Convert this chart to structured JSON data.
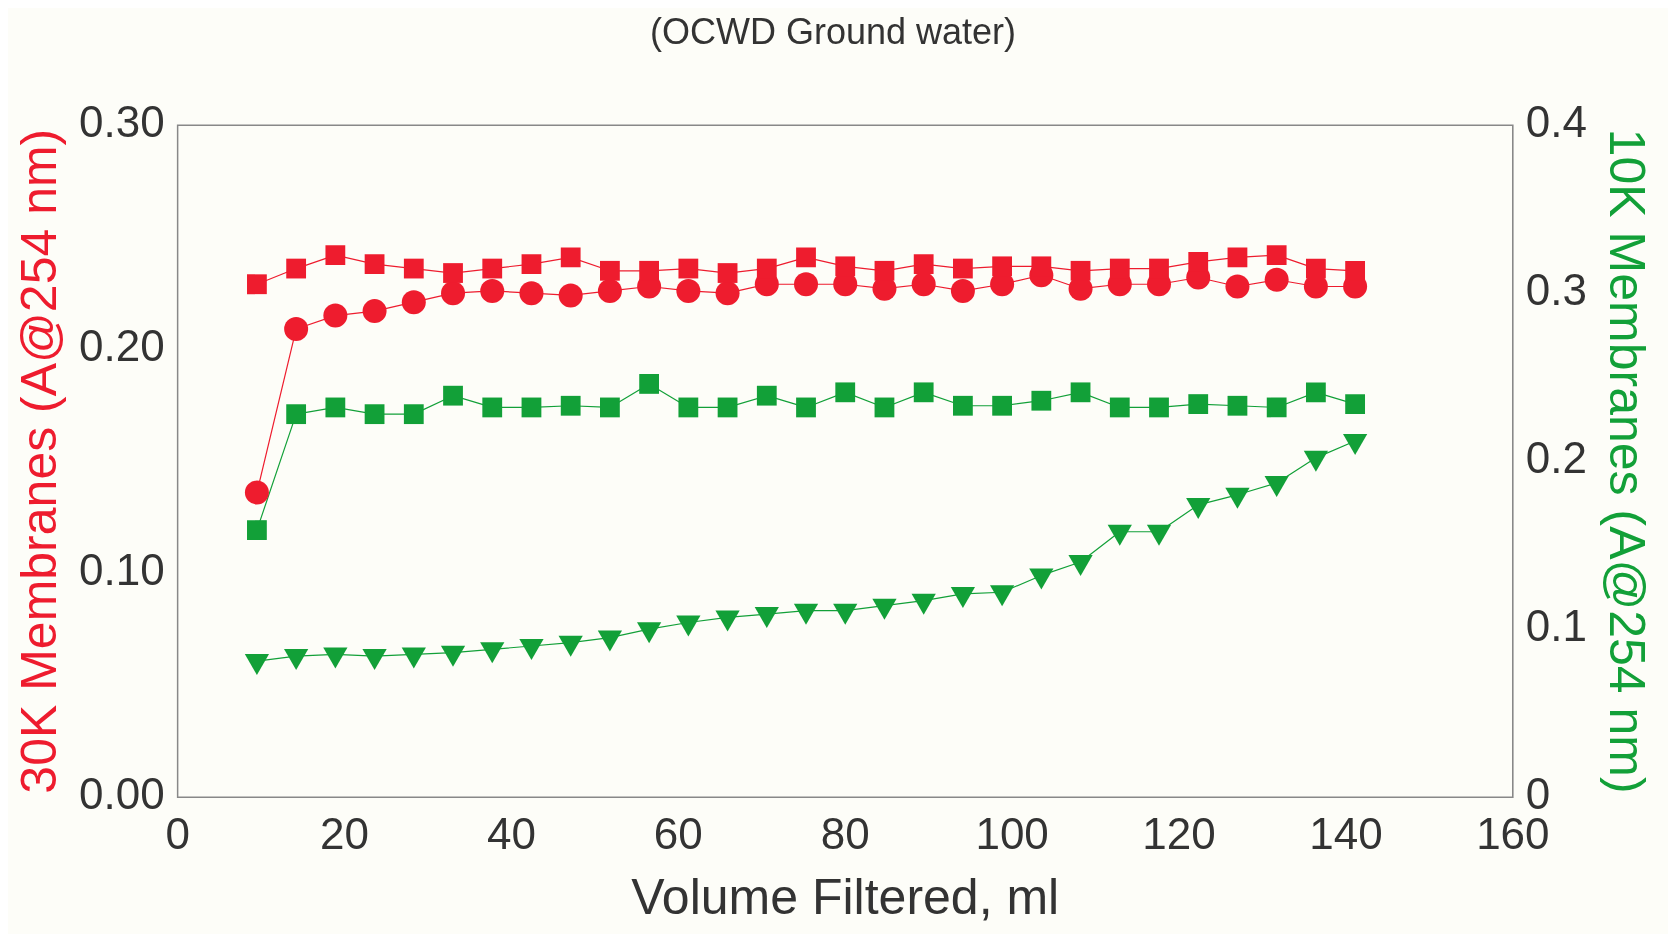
{
  "chart_data": {
    "type": "line",
    "title": "(OCWD Ground water)",
    "xlabel": "Volume Filtered, ml",
    "ylabel": "30K Membranes (A@254 nm)",
    "y2label": "10K Membranes (A@254 nm)",
    "x": [
      9.5,
      14.2,
      18.9,
      23.6,
      28.3,
      33,
      37.7,
      42.4,
      47.1,
      51.8,
      56.5,
      61.2,
      65.9,
      70.6,
      75.3,
      80,
      84.7,
      89.4,
      94.1,
      98.8,
      103.5,
      108.2,
      112.9,
      117.6,
      122.3,
      127,
      131.7,
      136.4,
      141.1
    ],
    "series": [
      {
        "color": "#ee1c2e",
        "marker": "square",
        "values": [
          0.229,
          0.236,
          0.242,
          0.238,
          0.236,
          0.234,
          0.236,
          0.238,
          0.241,
          0.235,
          0.235,
          0.236,
          0.234,
          0.236,
          0.241,
          0.237,
          0.235,
          0.238,
          0.236,
          0.237,
          0.237,
          0.235,
          0.236,
          0.236,
          0.239,
          0.241,
          0.242,
          0.236,
          0.235
        ]
      },
      {
        "color": "#ee1c2e",
        "marker": "circle",
        "values": [
          0.136,
          0.209,
          0.215,
          0.217,
          0.221,
          0.225,
          0.226,
          0.225,
          0.224,
          0.226,
          0.228,
          0.226,
          0.225,
          0.229,
          0.229,
          0.229,
          0.227,
          0.229,
          0.226,
          0.229,
          0.233,
          0.227,
          0.229,
          0.229,
          0.232,
          0.228,
          0.231,
          0.228,
          0.228
        ]
      },
      {
        "color": "#12a038",
        "marker": "square",
        "axis": "y2",
        "values": [
          0.159,
          0.228,
          0.232,
          0.228,
          0.228,
          0.239,
          0.232,
          0.232,
          0.233,
          0.232,
          0.246,
          0.232,
          0.232,
          0.239,
          0.232,
          0.241,
          0.232,
          0.241,
          0.233,
          0.233,
          0.236,
          0.241,
          0.232,
          0.232,
          0.234,
          0.233,
          0.232,
          0.241,
          0.234
        ]
      },
      {
        "color": "#12a038",
        "marker": "triangle",
        "axis": "y2",
        "values": [
          0.081,
          0.084,
          0.085,
          0.084,
          0.085,
          0.086,
          0.088,
          0.09,
          0.092,
          0.095,
          0.1,
          0.104,
          0.107,
          0.109,
          0.111,
          0.111,
          0.114,
          0.117,
          0.121,
          0.122,
          0.132,
          0.14,
          0.158,
          0.158,
          0.174,
          0.18,
          0.187,
          0.202,
          0.212
        ]
      }
    ],
    "xlim": [
      0,
      160
    ],
    "xticks": [
      0,
      20,
      40,
      60,
      80,
      100,
      120,
      140,
      160
    ],
    "ylim": [
      0,
      0.3
    ],
    "yticks": [
      {
        "value": 0,
        "label": "0.00"
      },
      {
        "value": 0.1,
        "label": "0.10"
      },
      {
        "value": 0.2,
        "label": "0.20"
      },
      {
        "value": 0.3,
        "label": "0.30"
      }
    ],
    "y2lim": [
      0,
      0.4
    ],
    "y2ticks": [
      0,
      0.1,
      0.2,
      0.3,
      0.4
    ],
    "grid": false,
    "legend": false,
    "line_style": "solid"
  }
}
